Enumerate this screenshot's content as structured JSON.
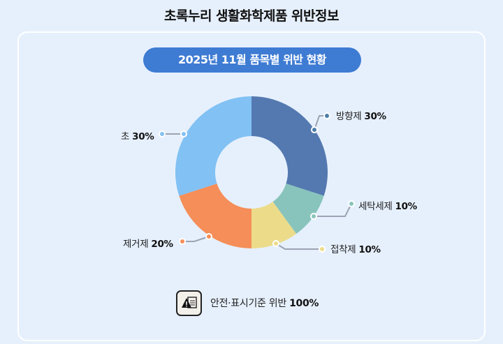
{
  "header": {
    "title": "초록누리 생활화학제품 위반정보"
  },
  "card": {
    "subtitle": "2025년 11월 품목별 위반 현황"
  },
  "legend_labels": [
    {
      "name": "방향제",
      "value": "30%"
    },
    {
      "name": "세탁세제",
      "value": "10%"
    },
    {
      "name": "접착제",
      "value": "10%"
    },
    {
      "name": "제거제",
      "value": "20%"
    },
    {
      "name": "초",
      "value": "30%"
    }
  ],
  "footer": {
    "icon": "warning-document-icon",
    "text": "안전·표시기준 위반",
    "value": "100%"
  },
  "colors": {
    "방향제": "#5479b0",
    "세탁세제": "#88c4bc",
    "접착제": "#ecdc8a",
    "제거제": "#f58e58",
    "초": "#82c1f3",
    "pill": "#3e7bd3",
    "background": "#e6f0fd"
  },
  "chart_data": {
    "type": "pie",
    "variant": "donut",
    "title": "2025년 11월 품목별 위반 현황",
    "categories": [
      "방향제",
      "세탁세제",
      "접착제",
      "제거제",
      "초"
    ],
    "values": [
      30,
      10,
      10,
      20,
      30
    ],
    "unit": "%",
    "start_angle": "12 o'clock",
    "direction": "clockwise",
    "legend": "leader-line labels around donut",
    "footnote": "안전·표시기준 위반 100%"
  }
}
